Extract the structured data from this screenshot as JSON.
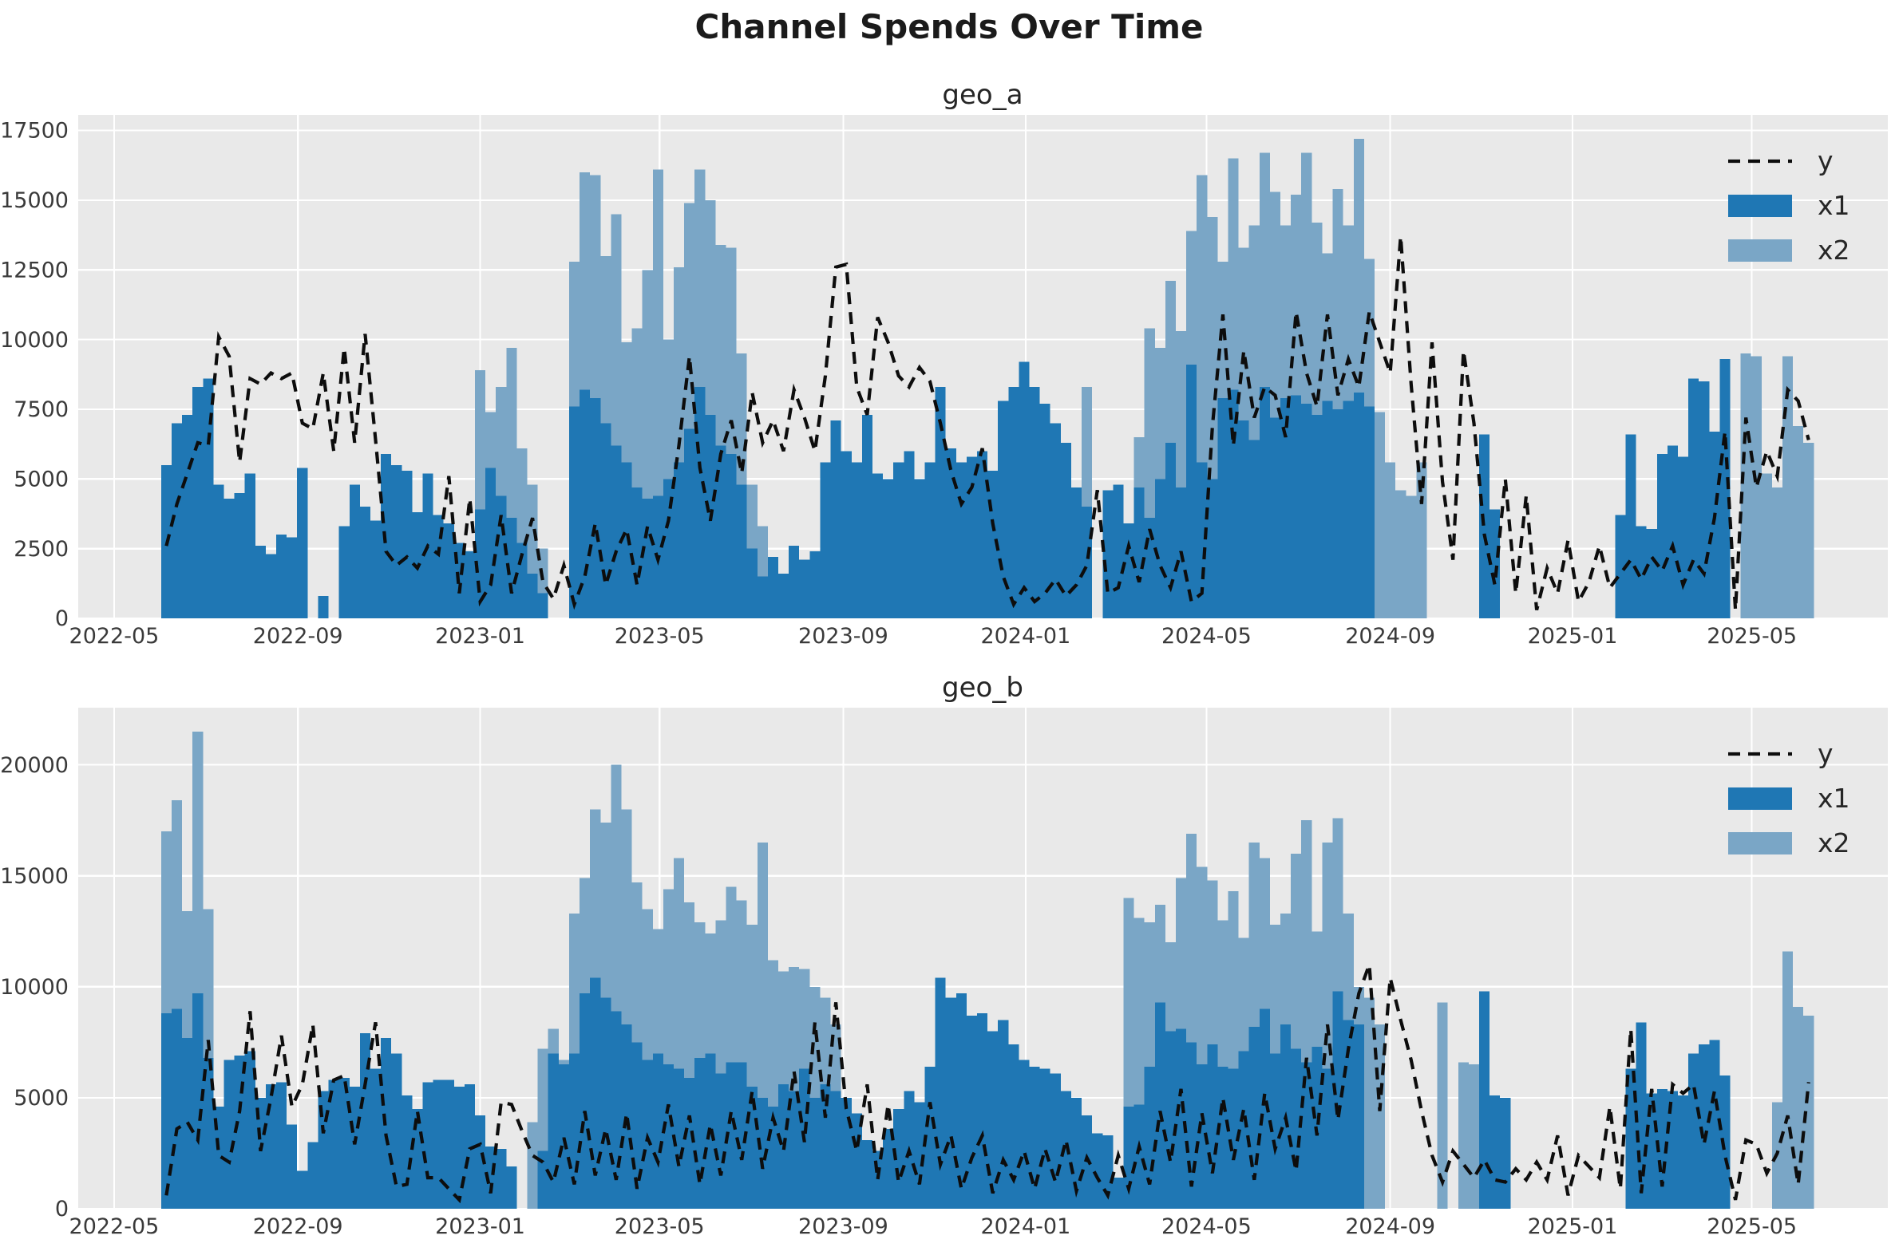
{
  "figure": {
    "title": "Channel Spends Over Time"
  },
  "style": {
    "plot_bg": "#e9e9e9",
    "grid_color": "#ffffff",
    "x1_color": "#1f77b4",
    "x2_color": "#7aa6c6",
    "y_line_color": "#0d0d0d",
    "tick_color": "#3a3a3a"
  },
  "legend": {
    "items": [
      {
        "label": "y",
        "type": "dashed-line"
      },
      {
        "label": "x1",
        "type": "patch"
      },
      {
        "label": "x2",
        "type": "patch"
      }
    ]
  },
  "time": {
    "start_date": "2022-06-05",
    "freq_days": 7,
    "xlim": [
      "2022-04-07",
      "2025-07-31"
    ]
  },
  "x_ticks": [
    {
      "label": "2022-05",
      "date": "2022-05-01"
    },
    {
      "label": "2022-09",
      "date": "2022-09-01"
    },
    {
      "label": "2023-01",
      "date": "2023-01-01"
    },
    {
      "label": "2023-05",
      "date": "2023-05-01"
    },
    {
      "label": "2023-09",
      "date": "2023-09-01"
    },
    {
      "label": "2024-01",
      "date": "2024-01-01"
    },
    {
      "label": "2024-05",
      "date": "2024-05-01"
    },
    {
      "label": "2024-09",
      "date": "2024-09-01"
    },
    {
      "label": "2025-01",
      "date": "2025-01-01"
    },
    {
      "label": "2025-05",
      "date": "2025-05-01"
    }
  ],
  "chart_data": [
    {
      "type": "bar+line",
      "id": "geo-a",
      "title": "geo_a",
      "ylim": [
        0,
        18060
      ],
      "y_ticks": [
        0,
        2500,
        5000,
        7500,
        10000,
        12500,
        15000,
        17500
      ],
      "series": [
        {
          "name": "y",
          "type": "line",
          "values": [
            2600,
            4100,
            5200,
            6300,
            6200,
            10100,
            9400,
            5600,
            8600,
            8400,
            8800,
            8600,
            8800,
            7000,
            6800,
            8800,
            6000,
            9700,
            6300,
            10200,
            6400,
            2400,
            1900,
            2200,
            1800,
            2600,
            2300,
            5100,
            900,
            4300,
            600,
            1200,
            3700,
            900,
            2300,
            3600,
            1300,
            700,
            1900,
            500,
            1500,
            3400,
            1200,
            2400,
            3200,
            1200,
            3300,
            2100,
            3500,
            6200,
            9400,
            5400,
            3500,
            5900,
            7100,
            5200,
            8100,
            6300,
            7100,
            6000,
            8200,
            7200,
            6000,
            8700,
            12600,
            12700,
            8300,
            7300,
            10800,
            9900,
            8700,
            8300,
            9000,
            8500,
            7000,
            5300,
            4100,
            4700,
            6100,
            3400,
            1500,
            500,
            1100,
            600,
            900,
            1400,
            800,
            1200,
            1900,
            4600,
            900,
            1100,
            2600,
            1300,
            3200,
            1900,
            1100,
            2400,
            600,
            900,
            6900,
            10900,
            6200,
            9600,
            7200,
            8300,
            8000,
            6500,
            11000,
            8800,
            7600,
            10900,
            8000,
            9300,
            8300,
            11000,
            9900,
            8800,
            13700,
            8400,
            4100,
            9900,
            4900,
            2100,
            9600,
            7000,
            3000,
            1200,
            5000,
            900,
            4400,
            300,
            1800,
            900,
            2800,
            600,
            1300,
            2600,
            1100,
            1600,
            2100,
            1400,
            2200,
            1700,
            2600,
            1200,
            2100,
            1600,
            3600,
            6700,
            300,
            7200,
            4700,
            6000,
            5100,
            8200,
            7800,
            6400
          ]
        },
        {
          "name": "x1",
          "type": "bar",
          "values": [
            5500,
            7000,
            7300,
            8300,
            8600,
            4800,
            4300,
            4500,
            5200,
            2600,
            2300,
            3000,
            2900,
            5400,
            0,
            800,
            0,
            3300,
            4800,
            4000,
            3500,
            5900,
            5500,
            5300,
            3800,
            5200,
            3700,
            3400,
            2700,
            2400,
            3900,
            5400,
            4400,
            3600,
            2700,
            1600,
            900,
            0,
            0,
            7600,
            8200,
            7900,
            7000,
            6200,
            5600,
            4700,
            4300,
            4400,
            5000,
            5600,
            6800,
            8300,
            7300,
            6200,
            5900,
            4800,
            2500,
            1500,
            2200,
            1600,
            2600,
            2100,
            2400,
            5600,
            7100,
            6000,
            5600,
            7300,
            5200,
            5000,
            5600,
            6000,
            5000,
            5600,
            8300,
            6100,
            5600,
            5800,
            6000,
            5300,
            7800,
            8300,
            9200,
            8300,
            7700,
            7000,
            6300,
            4700,
            4000,
            0,
            4600,
            4800,
            3400,
            4700,
            3600,
            5000,
            6300,
            4700,
            9100,
            5600,
            5000,
            7900,
            8200,
            7100,
            6400,
            8300,
            7200,
            7900,
            8000,
            7700,
            7300,
            7800,
            7500,
            7800,
            8100,
            7600,
            0,
            0,
            0,
            0,
            0,
            0,
            0,
            0,
            0,
            0,
            6600,
            3900,
            0,
            0,
            0,
            0,
            0,
            0,
            0,
            0,
            0,
            0,
            0,
            3700,
            6600,
            3300,
            3200,
            5900,
            6200,
            5800,
            8600,
            8500,
            6700,
            9300,
            0,
            0,
            0,
            0,
            0,
            0,
            0,
            0
          ]
        },
        {
          "name": "x2",
          "type": "bar",
          "values": [
            0,
            0,
            0,
            0,
            0,
            0,
            0,
            0,
            0,
            0,
            0,
            0,
            0,
            0,
            0,
            0,
            0,
            0,
            0,
            0,
            0,
            0,
            0,
            0,
            0,
            0,
            0,
            0,
            0,
            0,
            8900,
            7400,
            8300,
            9700,
            6100,
            4800,
            2500,
            0,
            0,
            12800,
            16000,
            15900,
            13000,
            14500,
            9900,
            10400,
            12500,
            16100,
            10000,
            12600,
            14900,
            16100,
            15000,
            13400,
            13300,
            9500,
            4800,
            3300,
            0,
            0,
            0,
            0,
            0,
            0,
            0,
            0,
            0,
            0,
            0,
            0,
            0,
            0,
            0,
            0,
            0,
            0,
            0,
            0,
            0,
            0,
            0,
            0,
            0,
            0,
            0,
            0,
            0,
            0,
            8300,
            0,
            0,
            0,
            0,
            6500,
            10400,
            9700,
            12100,
            10300,
            13900,
            15900,
            14400,
            12800,
            16500,
            13300,
            14100,
            16700,
            15300,
            14100,
            15200,
            16700,
            14200,
            13100,
            15400,
            14100,
            17200,
            12900,
            7400,
            5600,
            4600,
            4400,
            5600,
            0,
            0,
            0,
            0,
            0,
            0,
            0,
            0,
            0,
            0,
            0,
            0,
            0,
            0,
            0,
            0,
            0,
            0,
            0,
            0,
            0,
            0,
            0,
            0,
            0,
            0,
            0,
            0,
            0,
            0,
            9500,
            9400,
            5200,
            4700,
            9400,
            6900,
            6300
          ]
        }
      ]
    },
    {
      "type": "bar+line",
      "id": "geo-b",
      "title": "geo_b",
      "ylim": [
        0,
        22575
      ],
      "y_ticks": [
        0,
        5000,
        10000,
        15000,
        20000
      ],
      "series": [
        {
          "name": "y",
          "type": "line",
          "values": [
            600,
            3600,
            3900,
            3100,
            7600,
            2400,
            2100,
            4400,
            8900,
            2600,
            5000,
            7800,
            4600,
            5600,
            8300,
            3400,
            5800,
            6000,
            2900,
            5600,
            8400,
            3300,
            1000,
            1100,
            4400,
            1400,
            1400,
            900,
            400,
            2700,
            2900,
            700,
            4800,
            4700,
            3500,
            2400,
            2100,
            1200,
            3200,
            1100,
            4400,
            1500,
            3600,
            1300,
            4300,
            900,
            3200,
            2100,
            4700,
            1900,
            4200,
            1100,
            3800,
            1500,
            4400,
            2200,
            5300,
            1800,
            4100,
            2600,
            6200,
            3000,
            8400,
            4100,
            9300,
            4500,
            2600,
            5600,
            1300,
            4700,
            1200,
            2600,
            1100,
            4800,
            2000,
            3300,
            900,
            2300,
            3300,
            700,
            2200,
            1300,
            2600,
            900,
            2700,
            1200,
            3100,
            800,
            2300,
            1400,
            600,
            2400,
            900,
            2800,
            1100,
            4400,
            2100,
            5400,
            1000,
            4300,
            1600,
            5000,
            2200,
            4500,
            1300,
            5200,
            2700,
            4100,
            1700,
            6800,
            3300,
            8300,
            4000,
            7200,
            9700,
            11000,
            4400,
            10400,
            8500,
            6700,
            4400,
            2400,
            1200,
            2600,
            2000,
            1400,
            2200,
            1300,
            1200,
            1800,
            1300,
            2100,
            1300,
            3300,
            600,
            2400,
            1900,
            1400,
            4600,
            900,
            8100,
            700,
            5400,
            1000,
            5600,
            5200,
            5600,
            2900,
            5300,
            2400,
            400,
            3100,
            2900,
            1600,
            2500,
            4200,
            1100,
            5700
          ]
        },
        {
          "name": "x1",
          "type": "bar",
          "values": [
            8800,
            9000,
            7700,
            9700,
            6800,
            4600,
            6700,
            6900,
            7100,
            5000,
            5600,
            5700,
            3800,
            1700,
            3000,
            5300,
            5800,
            5900,
            5500,
            7900,
            6300,
            7700,
            7000,
            5100,
            4500,
            5700,
            5800,
            5800,
            5500,
            5600,
            4200,
            2800,
            2700,
            1900,
            0,
            0,
            2600,
            7000,
            6500,
            7000,
            9700,
            10400,
            9500,
            8900,
            8300,
            7500,
            6700,
            7000,
            6500,
            6300,
            5900,
            6800,
            7000,
            6100,
            6600,
            6600,
            5500,
            5000,
            4600,
            5600,
            5300,
            6300,
            5000,
            5600,
            5300,
            5000,
            4300,
            3100,
            2600,
            3600,
            4500,
            5300,
            4800,
            6400,
            10400,
            9500,
            9700,
            8700,
            8800,
            8000,
            8500,
            7400,
            6700,
            6400,
            6300,
            6100,
            5300,
            5000,
            4200,
            3400,
            3300,
            1400,
            4600,
            4700,
            6400,
            9300,
            8000,
            8100,
            7500,
            6500,
            7400,
            6400,
            6300,
            7100,
            8200,
            9000,
            7000,
            8300,
            7200,
            6600,
            7300,
            6300,
            9800,
            8500,
            8300,
            0,
            0,
            0,
            0,
            0,
            0,
            0,
            0,
            0,
            0,
            0,
            9800,
            5100,
            5000,
            0,
            0,
            0,
            0,
            0,
            0,
            0,
            0,
            0,
            0,
            0,
            6300,
            8400,
            5200,
            5400,
            5300,
            5100,
            7000,
            7400,
            7600,
            6000,
            0,
            0,
            0,
            0,
            0,
            0,
            0,
            0
          ]
        },
        {
          "name": "x2",
          "type": "bar",
          "values": [
            17000,
            18400,
            13400,
            21500,
            13500,
            0,
            0,
            0,
            0,
            0,
            0,
            0,
            0,
            0,
            0,
            0,
            0,
            0,
            0,
            0,
            0,
            0,
            0,
            0,
            0,
            0,
            0,
            0,
            0,
            0,
            0,
            0,
            0,
            0,
            0,
            3900,
            7200,
            8100,
            6700,
            13300,
            14900,
            18000,
            17400,
            20000,
            18000,
            14700,
            13500,
            12600,
            14400,
            15800,
            13800,
            12900,
            12400,
            13000,
            14500,
            13900,
            12800,
            16500,
            11200,
            10700,
            10900,
            10800,
            10000,
            9500,
            8300,
            0,
            0,
            0,
            0,
            0,
            0,
            0,
            0,
            0,
            0,
            0,
            0,
            0,
            0,
            0,
            0,
            0,
            0,
            0,
            0,
            0,
            0,
            0,
            0,
            0,
            0,
            0,
            14000,
            13100,
            12900,
            13700,
            12000,
            14900,
            16900,
            15400,
            14800,
            13000,
            14300,
            12200,
            16500,
            15800,
            12800,
            13300,
            16000,
            17500,
            12500,
            16500,
            17600,
            13300,
            10000,
            9500,
            8300,
            0,
            0,
            0,
            0,
            0,
            9300,
            0,
            6600,
            6500,
            0,
            0,
            0,
            0,
            0,
            0,
            0,
            0,
            0,
            0,
            0,
            0,
            0,
            0,
            0,
            0,
            0,
            0,
            0,
            0,
            0,
            0,
            0,
            0,
            0,
            0,
            0,
            0,
            4800,
            11600,
            9100,
            8700
          ]
        }
      ]
    }
  ]
}
